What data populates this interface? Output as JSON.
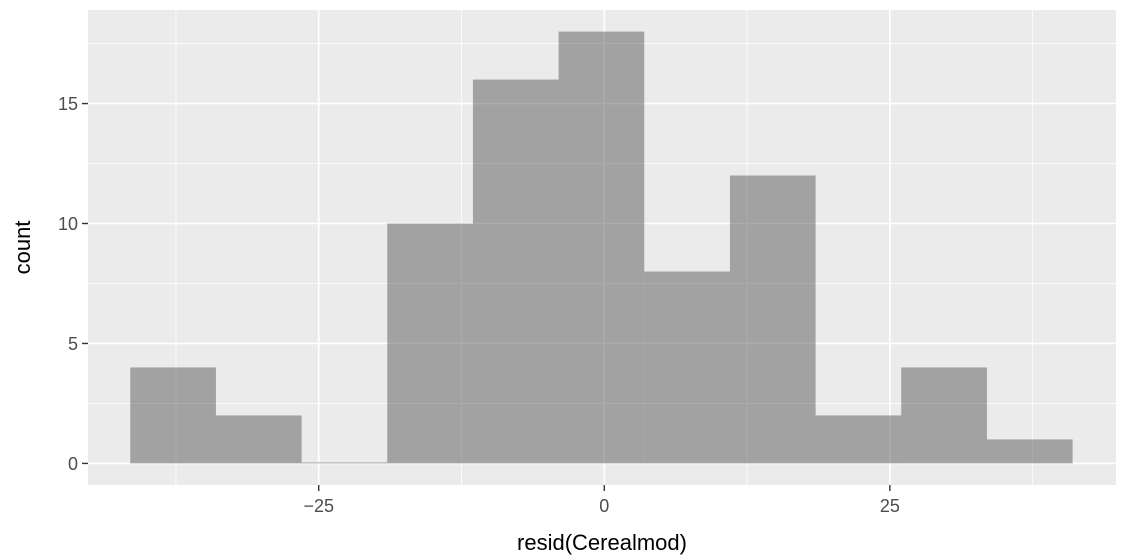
{
  "chart_data": {
    "type": "bar",
    "subtype": "histogram",
    "title": "",
    "xlabel": "resid(Cerealmod)",
    "ylabel": "count",
    "bins": [
      {
        "x0": -41.5,
        "x1": -34.0,
        "count": 4
      },
      {
        "x0": -34.0,
        "x1": -26.5,
        "count": 2
      },
      {
        "x0": -26.5,
        "x1": -19.0,
        "count": 0
      },
      {
        "x0": -19.0,
        "x1": -11.5,
        "count": 10
      },
      {
        "x0": -11.5,
        "x1": -4.0,
        "count": 16
      },
      {
        "x0": -4.0,
        "x1": 3.5,
        "count": 18
      },
      {
        "x0": 3.5,
        "x1": 11.0,
        "count": 8
      },
      {
        "x0": 11.0,
        "x1": 18.5,
        "count": 12
      },
      {
        "x0": 18.5,
        "x1": 26.0,
        "count": 2
      },
      {
        "x0": 26.0,
        "x1": 33.5,
        "count": 4
      },
      {
        "x0": 33.5,
        "x1": 41.0,
        "count": 1
      }
    ],
    "xlim": [
      -45.2,
      44.8
    ],
    "ylim": [
      -0.9,
      18.9
    ],
    "x_ticks": [
      {
        "value": -25,
        "label": "−25"
      },
      {
        "value": 0,
        "label": "0"
      },
      {
        "value": 25,
        "label": "25"
      }
    ],
    "x_minor": [
      -37.5,
      -12.5,
      12.5,
      37.5
    ],
    "y_ticks": [
      {
        "value": 0,
        "label": "0"
      },
      {
        "value": 5,
        "label": "5"
      },
      {
        "value": 10,
        "label": "10"
      },
      {
        "value": 15,
        "label": "15"
      }
    ],
    "y_minor": [
      2.5,
      7.5,
      12.5,
      17.5
    ],
    "grid": true,
    "colors": {
      "panel": "#EBEBEB",
      "bar": "#595959",
      "grid": "#FFFFFF",
      "tick_label": "#4D4D4D"
    }
  }
}
